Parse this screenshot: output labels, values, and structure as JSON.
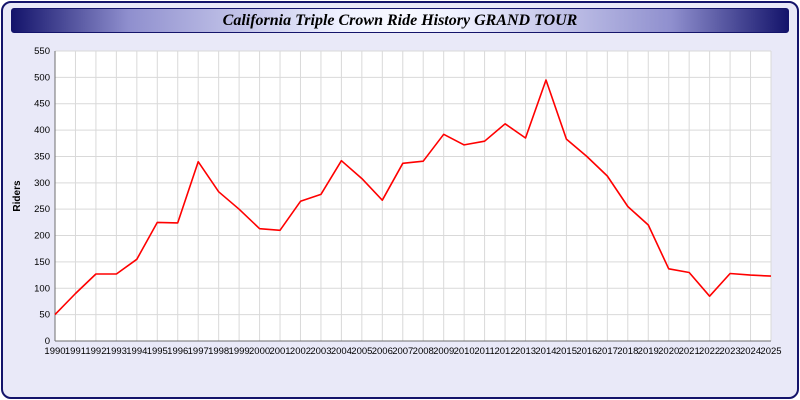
{
  "header": {
    "title": "California Triple Crown Ride History GRAND TOUR"
  },
  "colors": {
    "page_background": "#e9e9f8",
    "border_navy": "#14146b",
    "plot_background": "#ffffff",
    "grid": "#d9d9d9",
    "axis": "#6f6f6f",
    "line": "#ff0000",
    "tick_text": "#000000"
  },
  "chart_data": {
    "type": "line",
    "title": "California Triple Crown Ride History GRAND TOUR",
    "xlabel": "",
    "ylabel": "Riders",
    "ylim": [
      0,
      550
    ],
    "ytick_step": 50,
    "grid": true,
    "legend": "none",
    "categories": [
      "1990",
      "1991",
      "1992",
      "1993",
      "1994",
      "1995",
      "1996",
      "1997",
      "1998",
      "1999",
      "2000",
      "2001",
      "2002",
      "2003",
      "2004",
      "2005",
      "2006",
      "2007",
      "2008",
      "2009",
      "2010",
      "2011",
      "2012",
      "2013",
      "2014",
      "2015",
      "2016",
      "2017",
      "2018",
      "2019",
      "2020",
      "2021",
      "2022",
      "2023",
      "2024",
      "2025"
    ],
    "series": [
      {
        "name": "Riders",
        "color": "#ff0000",
        "values": [
          50,
          90,
          127,
          127,
          155,
          225,
          224,
          340,
          283,
          250,
          213,
          210,
          265,
          278,
          342,
          308,
          267,
          337,
          341,
          392,
          372,
          379,
          412,
          385,
          495,
          383,
          350,
          313,
          255,
          220,
          137,
          130,
          85,
          128,
          125,
          123
        ]
      }
    ]
  }
}
